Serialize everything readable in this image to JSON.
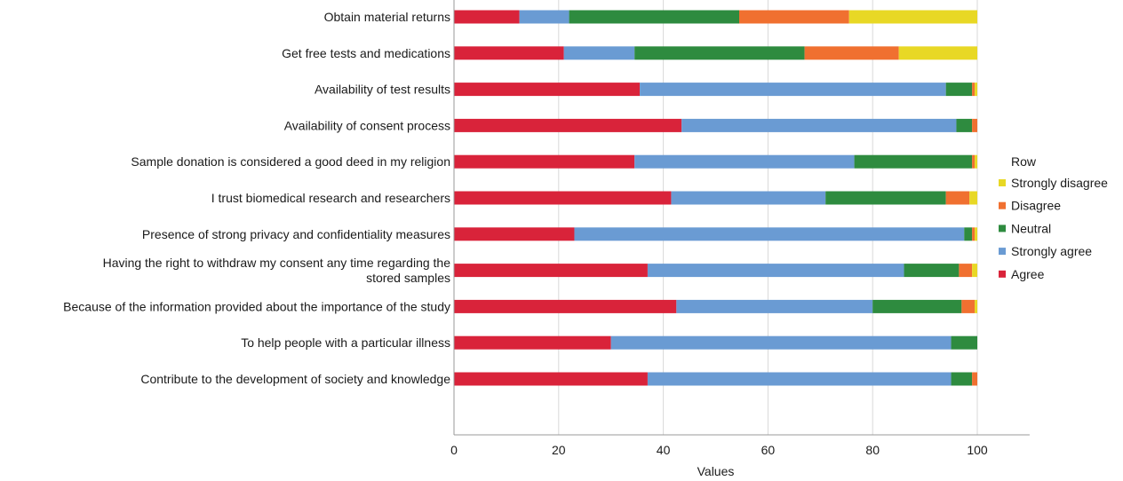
{
  "chart_data": {
    "type": "bar",
    "orientation": "horizontal",
    "stacked": true,
    "categories": [
      "Obtain material returns",
      "Get free tests and medications",
      "Availability of test results",
      "Availability of consent process",
      "Sample donation is considered a good deed in my religion",
      "I trust biomedical research and researchers",
      "Presence of strong privacy and confidentiality measures",
      "Having the right to withdraw my consent any time regarding the stored samples",
      "Because of the information provided about the importance of the study",
      "To help people with a particular illness",
      "Contribute to the development of society and knowledge"
    ],
    "category_lines": [
      [
        "Obtain material returns"
      ],
      [
        "Get free tests and medications"
      ],
      [
        "Availability of test results"
      ],
      [
        "Availability of consent process"
      ],
      [
        "Sample donation is considered a good deed in my religion"
      ],
      [
        "I trust biomedical research and researchers"
      ],
      [
        "Presence of strong privacy and confidentiality measures"
      ],
      [
        "Having the right to withdraw my consent any time regarding the",
        "stored samples"
      ],
      [
        "Because of the information provided about the importance of the study"
      ],
      [
        "To help people with a particular illness"
      ],
      [
        "Contribute to the development of society and knowledge"
      ]
    ],
    "series": [
      {
        "name": "Agree",
        "color": "#d9233a",
        "values": [
          12.5,
          21,
          35.5,
          43.5,
          34.5,
          41.5,
          23,
          37,
          42.5,
          30,
          37
        ]
      },
      {
        "name": "Strongly agree",
        "color": "#6a9bd3",
        "values": [
          9.5,
          13.5,
          58.5,
          52.5,
          42,
          29.5,
          74.5,
          49,
          37.5,
          65,
          58
        ]
      },
      {
        "name": "Neutral",
        "color": "#2e8b3f",
        "values": [
          32.5,
          32.5,
          5,
          3,
          22.5,
          23,
          1.5,
          10.5,
          17,
          5,
          4
        ]
      },
      {
        "name": "Disagree",
        "color": "#f07030",
        "values": [
          21,
          18,
          0.5,
          1,
          0.5,
          4.5,
          0.5,
          2.5,
          2.5,
          0,
          1
        ]
      },
      {
        "name": "Strongly disagree",
        "color": "#e8d825",
        "values": [
          24.5,
          15,
          0.5,
          0,
          0.5,
          1.5,
          0.5,
          1,
          0.5,
          0,
          0
        ]
      }
    ],
    "legend_order": [
      "Strongly disagree",
      "Disagree",
      "Neutral",
      "Strongly agree",
      "Agree"
    ],
    "legend_title": "Row",
    "legend_position": "right",
    "xlabel": "Values",
    "xlim": [
      0,
      110
    ],
    "xticks": [
      0,
      20,
      40,
      60,
      80,
      100
    ],
    "grid": true
  }
}
